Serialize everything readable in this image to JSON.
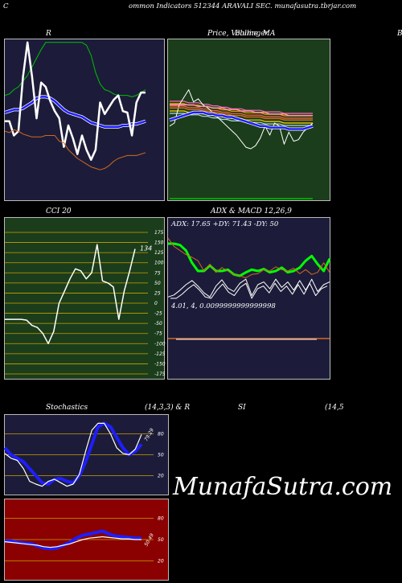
{
  "header": {
    "left_letter": "C",
    "title": "ommon  Indicators 512344  ARAVALI SEC. munafasutra.tbrjar.com"
  },
  "panels": {
    "rsi_mfi": {
      "title_left": "R",
      "title_right": ""
    },
    "price_ma": {
      "title": "Price,  Volume, MA",
      "title_overlap": "Bollinger",
      "cut_letter": "B"
    },
    "cci": {
      "title": "CCI 20",
      "last_label": "134"
    },
    "adx_macd": {
      "title": "ADX  & MACD 12,26,9",
      "adx_label": "ADX: 17.65 +DY: 71.43 -DY: 50",
      "macd_label": "4.01,  4,  0.0099999999999998"
    },
    "stoch": {
      "title_a": "Stochastics",
      "title_b": "(14,3,3) & R",
      "title_c": "SI",
      "title_d": "(14,5",
      "last_label": "79.29"
    },
    "stoch_rsi": {
      "last_label": "50.49"
    }
  },
  "watermark": "MunafaSutra.com",
  "colors": {
    "panel_navy": "#1c1c3a",
    "panel_green": "#1b3d1b",
    "panel_red": "#8b0000",
    "cci_grid": "#c8a000",
    "line_blue": "#1e1eff",
    "line_green": "#00c000",
    "line_orange": "#d2691e",
    "line_white": "#ffffff",
    "adx_green": "#00ff00"
  },
  "chart_data": [
    {
      "type": "line",
      "name": "rsi_mfi_panel",
      "ylim": [
        0,
        100
      ],
      "series": [
        {
          "name": "",
          "color": "green",
          "values": [
            62,
            63,
            66,
            68,
            72,
            76,
            82,
            88,
            94,
            99,
            99,
            99,
            99,
            99,
            99,
            99,
            99,
            99,
            97,
            90,
            78,
            70,
            66,
            65,
            63,
            62,
            62,
            62,
            61,
            62,
            64,
            66
          ]
        },
        {
          "name": "",
          "color": "blue",
          "values": [
            50,
            51,
            52,
            52,
            53,
            55,
            57,
            60,
            61,
            61,
            60,
            58,
            55,
            52,
            50,
            49,
            48,
            47,
            45,
            43,
            42,
            41,
            40,
            40,
            40,
            40,
            41,
            41,
            42,
            42,
            43,
            44
          ]
        },
        {
          "name": "",
          "color": "white",
          "values": [
            44,
            44,
            34,
            37,
            75,
            99,
            75,
            46,
            71,
            68,
            58,
            51,
            46,
            26,
            41,
            32,
            21,
            34,
            24,
            17,
            24,
            57,
            49,
            54,
            59,
            62,
            51,
            50,
            34,
            57,
            64,
            64
          ]
        },
        {
          "name": "",
          "color": "orange",
          "values": [
            37,
            36,
            38,
            37,
            35,
            34,
            33,
            33,
            33,
            34,
            34,
            34,
            30,
            29,
            24,
            21,
            18,
            16,
            14,
            12,
            11,
            10,
            11,
            13,
            16,
            18,
            19,
            20,
            20,
            20,
            21,
            22
          ]
        }
      ]
    },
    {
      "type": "line",
      "name": "price_panel",
      "ylim": [
        0,
        100
      ],
      "series": [
        {
          "name": "",
          "color": "white",
          "values": [
            48,
            50,
            62,
            67,
            72,
            64,
            66,
            62,
            60,
            57,
            54,
            51,
            48,
            45,
            42,
            38,
            34,
            33,
            35,
            40,
            48,
            42,
            50,
            48,
            36,
            44,
            38,
            39,
            44,
            47,
            50
          ]
        },
        {
          "name": "",
          "color": "orange",
          "values": [
            60,
            60,
            60,
            60,
            59,
            59,
            59,
            58,
            58,
            57,
            57,
            56,
            56,
            55,
            55,
            55,
            54,
            54,
            54,
            54,
            53,
            53,
            53,
            53,
            52,
            52,
            52,
            52,
            52,
            52,
            52
          ]
        },
        {
          "name": "",
          "color": "pink",
          "values": [
            62,
            62,
            62,
            62,
            62,
            62,
            61,
            61,
            61,
            60,
            60,
            60,
            59,
            59,
            59,
            58,
            58,
            58,
            57,
            57,
            57,
            56,
            56,
            56,
            56,
            55,
            55,
            55,
            55,
            55,
            55
          ]
        },
        {
          "name": "",
          "color": "blue",
          "values": [
            52,
            53,
            54,
            55,
            56,
            57,
            57,
            57,
            56,
            56,
            55,
            55,
            54,
            54,
            53,
            52,
            51,
            50,
            49,
            48,
            48,
            47,
            47,
            47,
            47,
            46,
            46,
            46,
            46,
            47,
            48
          ]
        },
        {
          "name": "",
          "color": "green",
          "values": [
            0,
            0,
            0,
            0,
            0,
            0,
            0,
            0,
            0,
            0,
            0,
            0,
            0,
            0,
            0,
            0,
            0,
            0,
            0,
            0,
            0,
            0,
            0,
            0,
            0,
            0,
            0,
            0,
            0,
            0,
            0
          ]
        }
      ]
    },
    {
      "type": "line",
      "name": "cci_panel",
      "title": "CCI 20",
      "ylim": [
        -175,
        175
      ],
      "yticks": [
        175,
        150,
        125,
        100,
        75,
        50,
        25,
        0,
        -25,
        -50,
        -75,
        -100,
        -125,
        -150,
        -175
      ],
      "series": [
        {
          "name": "",
          "color": "white",
          "values": [
            -40,
            -40,
            -40,
            -40,
            -42,
            -55,
            -60,
            -75,
            -100,
            -70,
            0,
            30,
            60,
            85,
            80,
            60,
            75,
            145,
            55,
            50,
            40,
            -40,
            30,
            80,
            134
          ]
        }
      ]
    },
    {
      "type": "line",
      "name": "adx_panel",
      "title": "ADX  & MACD 12,26,9",
      "ylim": [
        0,
        100
      ],
      "series": [
        {
          "name": "",
          "color": "green",
          "values": [
            80,
            80,
            78,
            70,
            52,
            40,
            40,
            48,
            40,
            40,
            42,
            35,
            33,
            38,
            42,
            40,
            43,
            38,
            40,
            45,
            38,
            40,
            45,
            55,
            62,
            50,
            40,
            58
          ]
        },
        {
          "name": "",
          "color": "orange",
          "values": [
            88,
            76,
            70,
            64,
            60,
            55,
            40,
            50,
            38,
            45,
            40,
            35,
            33,
            30,
            35,
            36,
            42,
            40,
            46,
            42,
            40,
            44,
            36,
            42,
            35,
            38,
            52,
            38
          ]
        },
        {
          "name": "",
          "color": "white",
          "values": [
            2,
            5,
            12,
            20,
            26,
            18,
            8,
            2,
            18,
            27,
            15,
            10,
            22,
            28,
            4,
            20,
            24,
            14,
            28,
            16,
            24,
            12,
            26,
            12,
            28,
            10,
            20,
            24
          ]
        }
      ]
    },
    {
      "type": "line",
      "name": "stochastics_panel",
      "ylim": [
        0,
        100
      ],
      "yticks": [
        80,
        50,
        20
      ],
      "series": [
        {
          "name": "",
          "color": "blue",
          "values": [
            60,
            50,
            45,
            40,
            30,
            20,
            10,
            8,
            15,
            16,
            12,
            10,
            20,
            40,
            65,
            90,
            95,
            90,
            75,
            60,
            50,
            55,
            65
          ]
        },
        {
          "name": "",
          "color": "white",
          "values": [
            52,
            45,
            42,
            30,
            12,
            8,
            5,
            12,
            15,
            10,
            5,
            8,
            22,
            55,
            85,
            95,
            95,
            80,
            60,
            52,
            50,
            58,
            79
          ]
        }
      ]
    },
    {
      "type": "line",
      "name": "stoch_rsi_panel",
      "ylim": [
        0,
        100
      ],
      "yticks": [
        80,
        50,
        20
      ],
      "series": [
        {
          "name": "",
          "color": "blue",
          "values": [
            48,
            48,
            46,
            45,
            44,
            41,
            38,
            37,
            38,
            42,
            46,
            52,
            56,
            58,
            60,
            62,
            58,
            55,
            54,
            53,
            52,
            52
          ]
        },
        {
          "name": "",
          "color": "white",
          "values": [
            47,
            46,
            45,
            44,
            43,
            42,
            40,
            39,
            40,
            42,
            44,
            47,
            50,
            52,
            53,
            54,
            53,
            52,
            51,
            51,
            50,
            50
          ]
        }
      ]
    }
  ]
}
